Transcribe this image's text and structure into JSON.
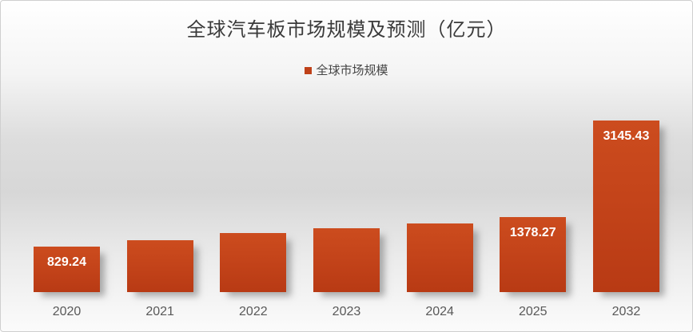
{
  "chart": {
    "title": "全球汽车板市场规模及预测（亿元）",
    "legend": {
      "label": "全球市场规模",
      "marker_color": "#bf4119"
    }
  },
  "chart_data": {
    "type": "bar",
    "title": "全球汽车板市场规模及预测（亿元）",
    "categories": [
      "2020",
      "2021",
      "2022",
      "2023",
      "2024",
      "2025",
      "2032"
    ],
    "series": [
      {
        "name": "全球市场规模",
        "values": [
          829.24,
          950,
          1080,
          1170,
          1265,
          1378.27,
          3145.43
        ]
      }
    ],
    "data_labels": [
      "829.24",
      "",
      "",
      "",
      "",
      "1378.27",
      "3145.43"
    ],
    "xlabel": "",
    "ylabel": "",
    "ylim": [
      0,
      3300
    ],
    "grid": false,
    "legend_position": "top-center",
    "bar_color_top": "#cc4c1e",
    "bar_color_bottom": "#b83a14",
    "data_label_color": "#ffffff",
    "axis_tick_color": "#595959",
    "title_color": "#3a3a3a",
    "background": "white-to-gray vertical gradient"
  }
}
